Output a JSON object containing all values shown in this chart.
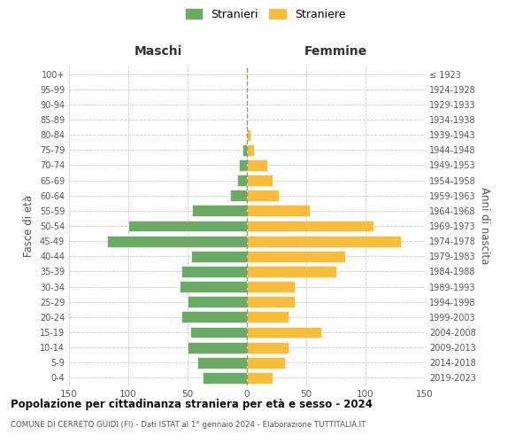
{
  "age_groups": [
    "0-4",
    "5-9",
    "10-14",
    "15-19",
    "20-24",
    "25-29",
    "30-34",
    "35-39",
    "40-44",
    "45-49",
    "50-54",
    "55-59",
    "60-64",
    "65-69",
    "70-74",
    "75-79",
    "80-84",
    "85-89",
    "90-94",
    "95-99",
    "100+"
  ],
  "birth_years": [
    "2019-2023",
    "2014-2018",
    "2009-2013",
    "2004-2008",
    "1999-2003",
    "1994-1998",
    "1989-1993",
    "1984-1988",
    "1979-1983",
    "1974-1978",
    "1969-1973",
    "1964-1968",
    "1959-1963",
    "1954-1958",
    "1949-1953",
    "1944-1948",
    "1939-1943",
    "1934-1938",
    "1929-1933",
    "1924-1928",
    "≤ 1923"
  ],
  "males": [
    37,
    42,
    50,
    48,
    55,
    50,
    57,
    55,
    47,
    118,
    100,
    46,
    14,
    8,
    7,
    4,
    0,
    0,
    0,
    0,
    0
  ],
  "females": [
    22,
    32,
    35,
    63,
    35,
    40,
    40,
    75,
    83,
    130,
    107,
    53,
    27,
    22,
    17,
    6,
    3,
    0,
    0,
    0,
    0
  ],
  "male_color": "#6aaa64",
  "female_color": "#f9bc3b",
  "background_color": "#ffffff",
  "grid_color": "#cccccc",
  "title": "Popolazione per cittadinanza straniera per età e sesso - 2024",
  "subtitle": "COMUNE DI CERRETO GUIDI (FI) - Dati ISTAT al 1° gennaio 2024 - Elaborazione TUTTITALIA.IT",
  "ylabel_left": "Fasce di età",
  "ylabel_right": "Anni di nascita",
  "xlabel_left": "Maschi",
  "xlabel_right": "Femmine",
  "legend_male": "Stranieri",
  "legend_female": "Straniere",
  "xlim": 150
}
